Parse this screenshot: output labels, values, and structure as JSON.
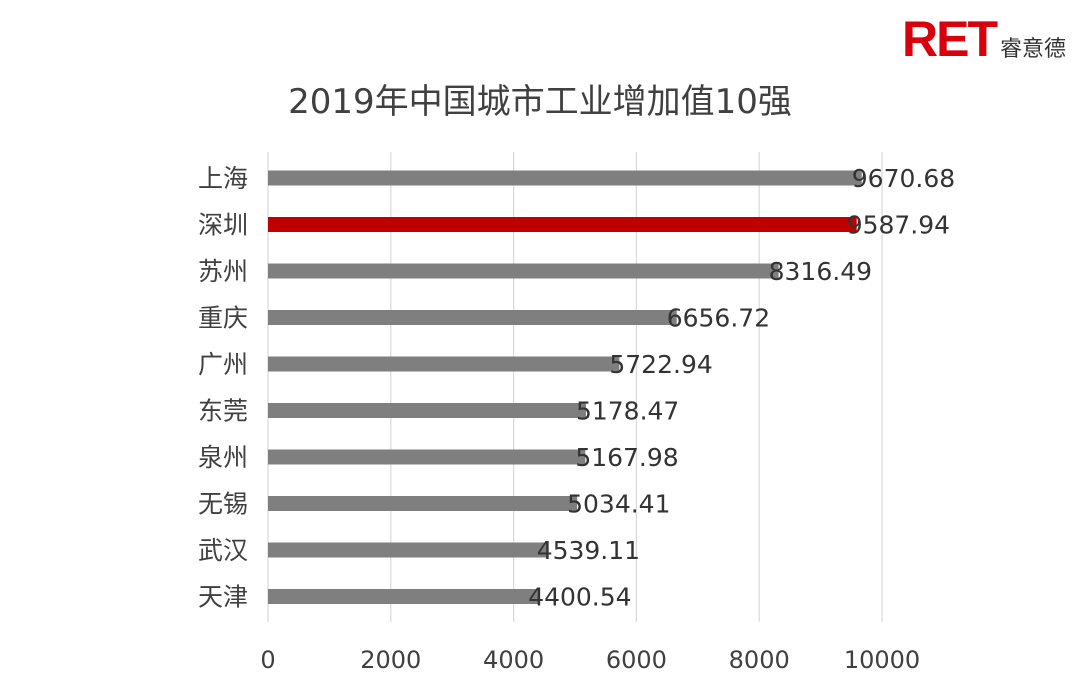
{
  "logo": {
    "mark": "RET",
    "cn": "睿意德"
  },
  "colors": {
    "bar": "#7f7f7f",
    "highlight": "#c00000",
    "grid": "#d9d9d9",
    "text": "#404040",
    "brand": "#d9000d"
  },
  "chart_data": {
    "type": "bar",
    "orientation": "horizontal",
    "title": "2019年中国城市工业增加值10强",
    "categories": [
      "上海",
      "深圳",
      "苏州",
      "重庆",
      "广州",
      "东莞",
      "泉州",
      "无锡",
      "武汉",
      "天津"
    ],
    "values": [
      9670.68,
      9587.94,
      8316.49,
      6656.72,
      5722.94,
      5178.47,
      5167.98,
      5034.41,
      4539.11,
      4400.54
    ],
    "value_labels": [
      "9670.68",
      "9587.94",
      "8316.49",
      "6656.72",
      "5722.94",
      "5178.47",
      "5167.98",
      "5034.41",
      "4539.11",
      "4400.54"
    ],
    "highlight_index": 1,
    "xlim": [
      0,
      10000
    ],
    "xticks": [
      0,
      2000,
      4000,
      6000,
      8000,
      10000
    ],
    "xtick_labels": [
      "0",
      "2000",
      "4000",
      "6000",
      "8000",
      "10000"
    ],
    "grid": true,
    "legend": "none"
  }
}
